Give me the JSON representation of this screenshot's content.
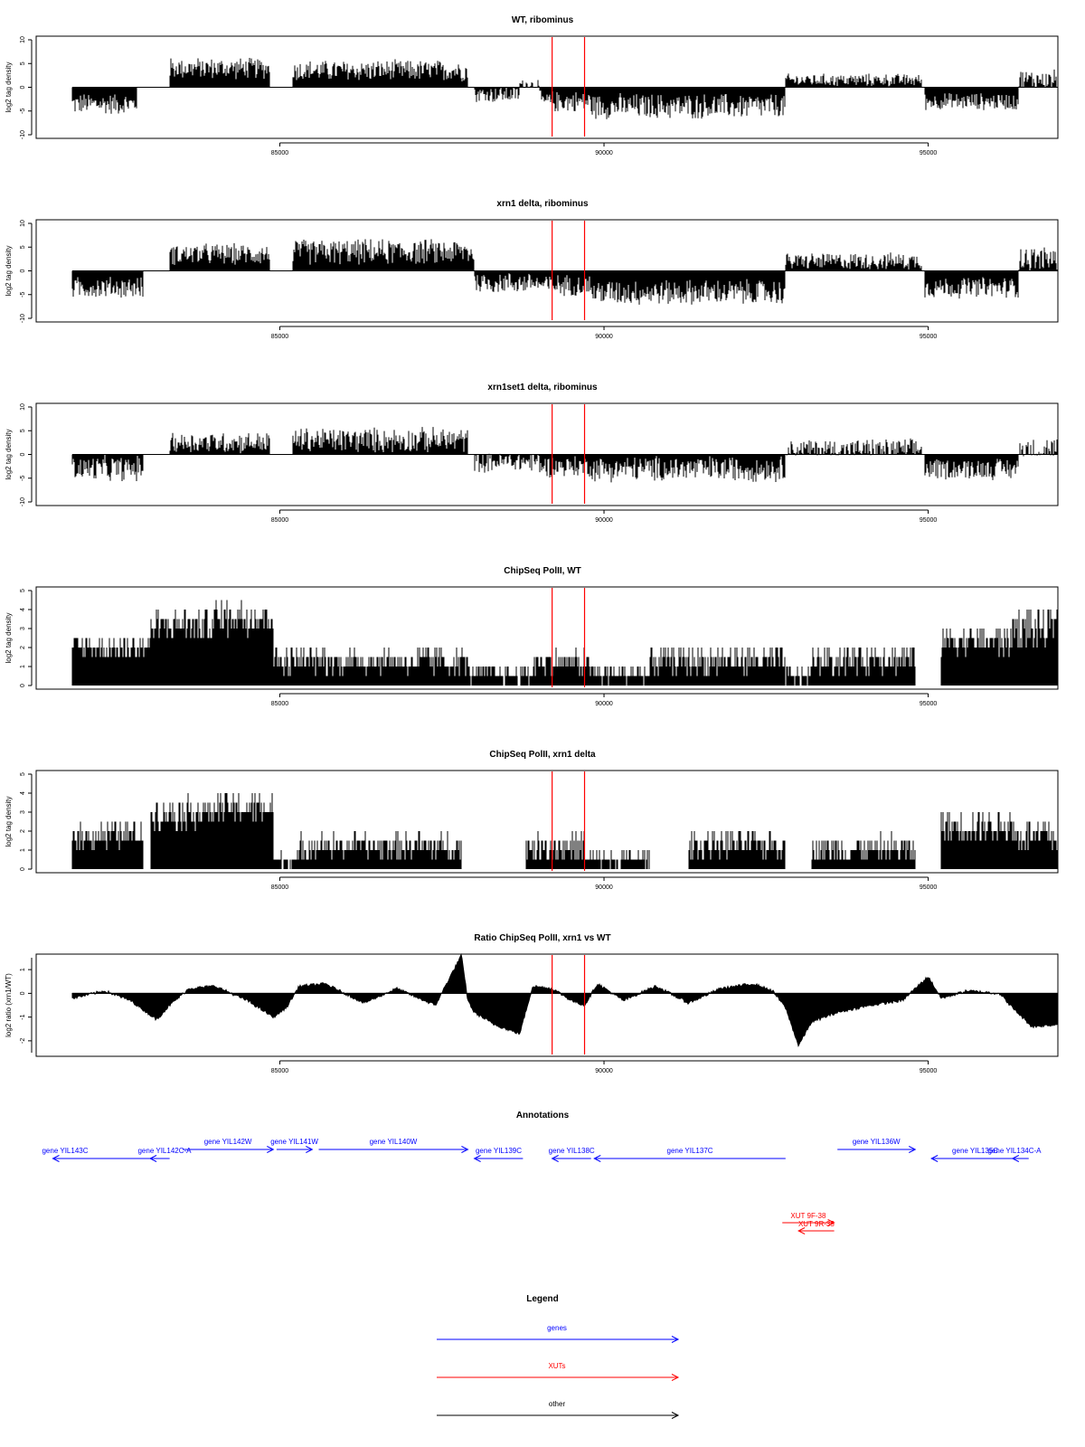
{
  "colors": {
    "gene": "#0000ff",
    "xut": "#ff0000",
    "other": "#000000",
    "marker": "#ff0000",
    "bar": "#000000"
  },
  "chart_data": [
    {
      "type": "bar",
      "title": "WT, ribominus",
      "xlabel": "",
      "ylabel": "log2 tag density",
      "xlim": [
        81800,
        97000
      ],
      "ylim": [
        -10,
        10
      ],
      "yticks": [
        -10,
        -5,
        0,
        5,
        10
      ],
      "xticks": [
        85000,
        90000,
        95000
      ],
      "xticklabels": [
        "85000",
        "90000",
        "95000"
      ],
      "markers_x": [
        89200,
        89700
      ],
      "segments": [
        {
          "x0": 81700,
          "x1": 82800,
          "mean": -3.5,
          "amp": 2.5
        },
        {
          "x0": 83300,
          "x1": 84850,
          "mean": 4.0,
          "amp": 2.5
        },
        {
          "x0": 85200,
          "x1": 87900,
          "mean": 3.5,
          "amp": 2.5
        },
        {
          "x0": 88000,
          "x1": 88700,
          "mean": -1.5,
          "amp": 2.0
        },
        {
          "x0": 88700,
          "x1": 89000,
          "mean": 0.5,
          "amp": 1.5
        },
        {
          "x0": 89000,
          "x1": 89800,
          "mean": -3.0,
          "amp": 2.5
        },
        {
          "x0": 89800,
          "x1": 92800,
          "mean": -4.0,
          "amp": 3.0
        },
        {
          "x0": 92800,
          "x1": 94900,
          "mean": 1.5,
          "amp": 1.5
        },
        {
          "x0": 94950,
          "x1": 96400,
          "mean": -3.0,
          "amp": 2.0
        },
        {
          "x0": 96400,
          "x1": 97000,
          "mean": 1.5,
          "amp": 2.5
        }
      ]
    },
    {
      "type": "bar",
      "title": "xrn1 delta, ribominus",
      "xlabel": "",
      "ylabel": "log2 tag density",
      "xlim": [
        81800,
        97000
      ],
      "ylim": [
        -10,
        10
      ],
      "yticks": [
        -10,
        -5,
        0,
        5,
        10
      ],
      "xticks": [
        85000,
        90000,
        95000
      ],
      "xticklabels": [
        "85000",
        "90000",
        "95000"
      ],
      "markers_x": [
        89200,
        89700
      ],
      "segments": [
        {
          "x0": 81700,
          "x1": 82900,
          "mean": -3.5,
          "amp": 2.5
        },
        {
          "x0": 83300,
          "x1": 84850,
          "mean": 3.5,
          "amp": 2.5
        },
        {
          "x0": 85200,
          "x1": 88000,
          "mean": 4.0,
          "amp": 3.0
        },
        {
          "x0": 88000,
          "x1": 89000,
          "mean": -2.5,
          "amp": 2.5
        },
        {
          "x0": 89000,
          "x1": 89800,
          "mean": -3.0,
          "amp": 2.5
        },
        {
          "x0": 89800,
          "x1": 92800,
          "mean": -4.5,
          "amp": 3.0
        },
        {
          "x0": 92800,
          "x1": 94900,
          "mean": 2.0,
          "amp": 2.0
        },
        {
          "x0": 94950,
          "x1": 96400,
          "mean": -3.5,
          "amp": 2.5
        },
        {
          "x0": 96400,
          "x1": 97000,
          "mean": 2.5,
          "amp": 3.0
        }
      ]
    },
    {
      "type": "bar",
      "title": "xrn1set1 delta, ribominus",
      "xlabel": "",
      "ylabel": "log2 tag density",
      "xlim": [
        81800,
        97000
      ],
      "ylim": [
        -10,
        10
      ],
      "yticks": [
        -10,
        -5,
        0,
        5,
        10
      ],
      "xticks": [
        85000,
        90000,
        95000
      ],
      "xticklabels": [
        "85000",
        "90000",
        "95000"
      ],
      "markers_x": [
        89200,
        89700
      ],
      "segments": [
        {
          "x0": 81700,
          "x1": 82900,
          "mean": -3.0,
          "amp": 3.0
        },
        {
          "x0": 83300,
          "x1": 84850,
          "mean": 2.5,
          "amp": 2.5
        },
        {
          "x0": 85200,
          "x1": 87900,
          "mean": 3.0,
          "amp": 3.0
        },
        {
          "x0": 88000,
          "x1": 89000,
          "mean": -1.5,
          "amp": 2.5
        },
        {
          "x0": 89000,
          "x1": 89800,
          "mean": -2.5,
          "amp": 2.5
        },
        {
          "x0": 89800,
          "x1": 92800,
          "mean": -3.0,
          "amp": 3.0
        },
        {
          "x0": 92800,
          "x1": 94900,
          "mean": 1.0,
          "amp": 2.5
        },
        {
          "x0": 94950,
          "x1": 96400,
          "mean": -3.0,
          "amp": 2.5
        },
        {
          "x0": 96400,
          "x1": 97000,
          "mean": 1.0,
          "amp": 3.0
        }
      ]
    },
    {
      "type": "bar",
      "title": "ChipSeq PolII, WT",
      "xlabel": "",
      "ylabel": "log2 tag density",
      "xlim": [
        81800,
        97000
      ],
      "ylim": [
        0,
        5
      ],
      "yticks": [
        0,
        1,
        2,
        3,
        4,
        5
      ],
      "xticks": [
        85000,
        90000,
        95000
      ],
      "xticklabels": [
        "85000",
        "90000",
        "95000"
      ],
      "markers_x": [
        89200,
        89700
      ],
      "segments": [
        {
          "x0": 81800,
          "x1": 83000,
          "mean": 2.0,
          "amp": 0.8
        },
        {
          "x0": 83000,
          "x1": 84000,
          "mean": 3.2,
          "amp": 1.0
        },
        {
          "x0": 84000,
          "x1": 84900,
          "mean": 3.6,
          "amp": 1.1
        },
        {
          "x0": 84900,
          "x1": 87900,
          "mean": 1.3,
          "amp": 0.8
        },
        {
          "x0": 87900,
          "x1": 88900,
          "mean": 0.6,
          "amp": 0.6
        },
        {
          "x0": 88900,
          "x1": 89800,
          "mean": 1.2,
          "amp": 0.8
        },
        {
          "x0": 89800,
          "x1": 90700,
          "mean": 0.6,
          "amp": 0.6
        },
        {
          "x0": 90700,
          "x1": 92800,
          "mean": 1.3,
          "amp": 0.9
        },
        {
          "x0": 92800,
          "x1": 93200,
          "mean": 0.5,
          "amp": 0.5
        },
        {
          "x0": 93200,
          "x1": 94800,
          "mean": 1.4,
          "amp": 0.9
        },
        {
          "x0": 95200,
          "x1": 96300,
          "mean": 2.4,
          "amp": 1.0
        },
        {
          "x0": 96300,
          "x1": 97000,
          "mean": 3.0,
          "amp": 1.3
        }
      ]
    },
    {
      "type": "bar",
      "title": "ChipSeq PolII, xrn1 delta",
      "xlabel": "",
      "ylabel": "log2 tag density",
      "xlim": [
        81800,
        97000
      ],
      "ylim": [
        0,
        5
      ],
      "yticks": [
        0,
        1,
        2,
        3,
        4,
        5
      ],
      "xticks": [
        85000,
        90000,
        95000
      ],
      "xticklabels": [
        "85000",
        "90000",
        "95000"
      ],
      "markers_x": [
        89200,
        89700
      ],
      "segments": [
        {
          "x0": 81800,
          "x1": 82900,
          "mean": 1.8,
          "amp": 0.8
        },
        {
          "x0": 83000,
          "x1": 84000,
          "mean": 3.0,
          "amp": 1.0
        },
        {
          "x0": 84000,
          "x1": 84900,
          "mean": 3.2,
          "amp": 0.9
        },
        {
          "x0": 84900,
          "x1": 85300,
          "mean": 0.5,
          "amp": 0.5
        },
        {
          "x0": 85300,
          "x1": 87800,
          "mean": 1.2,
          "amp": 0.8
        },
        {
          "x0": 88800,
          "x1": 89700,
          "mean": 1.2,
          "amp": 0.9
        },
        {
          "x0": 89700,
          "x1": 90700,
          "mean": 0.5,
          "amp": 0.5
        },
        {
          "x0": 91300,
          "x1": 92800,
          "mean": 1.3,
          "amp": 0.8
        },
        {
          "x0": 93200,
          "x1": 94800,
          "mean": 1.1,
          "amp": 0.8
        },
        {
          "x0": 95200,
          "x1": 96300,
          "mean": 2.3,
          "amp": 1.0
        },
        {
          "x0": 96300,
          "x1": 97000,
          "mean": 1.8,
          "amp": 1.0
        }
      ]
    },
    {
      "type": "area",
      "title": "Ratio ChipSeq PolII, xrn1 vs WT",
      "xlabel": "",
      "ylabel": "log2 ratio (xrn1/WT)",
      "xlim": [
        81800,
        97000
      ],
      "ylim": [
        -2.5,
        1.5
      ],
      "yticks": [
        -2,
        -1,
        0,
        1
      ],
      "xticks": [
        85000,
        90000,
        95000
      ],
      "xticklabels": [
        "85000",
        "90000",
        "95000"
      ],
      "markers_x": [
        89200,
        89700
      ],
      "x": [
        81800,
        82300,
        82700,
        83100,
        83300,
        83600,
        84000,
        84500,
        84900,
        85100,
        85300,
        85700,
        86300,
        86800,
        87400,
        87800,
        87900,
        88000,
        88300,
        88700,
        88900,
        89200,
        89500,
        89700,
        89900,
        90300,
        90800,
        91300,
        91800,
        92300,
        92600,
        92800,
        93000,
        93200,
        93600,
        94100,
        94600,
        95000,
        95200,
        95600,
        96100,
        96300,
        96600,
        97000
      ],
      "values": [
        -0.2,
        0.1,
        -0.3,
        -1.1,
        -0.5,
        0.2,
        0.3,
        -0.3,
        -1.0,
        -0.6,
        0.3,
        0.4,
        -0.4,
        0.2,
        -0.5,
        1.6,
        -0.3,
        -0.8,
        -1.3,
        -1.7,
        0.3,
        0.2,
        -0.3,
        -0.5,
        0.4,
        -0.3,
        0.3,
        -0.4,
        0.2,
        0.4,
        0.1,
        -0.6,
        -2.2,
        -1.2,
        -0.8,
        -0.5,
        -0.3,
        0.7,
        -0.2,
        0.1,
        0.0,
        -0.6,
        -1.4,
        -1.3
      ]
    }
  ],
  "annotations": {
    "title": "Annotations",
    "features": [
      {
        "label": "gene YIL143C",
        "kind": "gene",
        "x0": 81500,
        "x1": 83300,
        "strand": "-",
        "row": 2
      },
      {
        "label": "gene YIL142C-A",
        "kind": "gene",
        "x0": 83000,
        "x1": 83300,
        "strand": "-",
        "row": 2
      },
      {
        "label": "gene YIL142W",
        "kind": "gene",
        "x0": 83500,
        "x1": 84900,
        "strand": "+",
        "row": 1
      },
      {
        "label": "gene YIL141W",
        "kind": "gene",
        "x0": 84950,
        "x1": 85500,
        "strand": "+",
        "row": 1
      },
      {
        "label": "gene YIL140W",
        "kind": "gene",
        "x0": 85600,
        "x1": 87900,
        "strand": "+",
        "row": 1
      },
      {
        "label": "gene YIL139C",
        "kind": "gene",
        "x0": 88000,
        "x1": 88750,
        "strand": "-",
        "row": 2
      },
      {
        "label": "gene YIL138C",
        "kind": "gene",
        "x0": 89200,
        "x1": 89800,
        "strand": "-",
        "row": 2
      },
      {
        "label": "gene YIL137C",
        "kind": "gene",
        "x0": 89850,
        "x1": 92800,
        "strand": "-",
        "row": 2
      },
      {
        "label": "gene YIL136W",
        "kind": "gene",
        "x0": 93600,
        "x1": 94800,
        "strand": "+",
        "row": 1
      },
      {
        "label": "gene YIL135C",
        "kind": "gene",
        "x0": 95050,
        "x1": 96400,
        "strand": "-",
        "row": 2
      },
      {
        "label": "gene YIL134C-A",
        "kind": "gene",
        "x0": 96300,
        "x1": 96550,
        "strand": "-",
        "row": 2
      },
      {
        "label": "XUT 9F-38",
        "kind": "xut",
        "x0": 92750,
        "x1": 93550,
        "strand": "+",
        "row": 3
      },
      {
        "label": "XUT 9R-35",
        "kind": "xut",
        "x0": 93000,
        "x1": 93550,
        "strand": "-",
        "row": 4
      }
    ]
  },
  "legend": {
    "title": "Legend",
    "items": [
      {
        "label": "genes",
        "kind": "gene"
      },
      {
        "label": "XUTs",
        "kind": "xut"
      },
      {
        "label": "other",
        "kind": "other"
      }
    ]
  }
}
